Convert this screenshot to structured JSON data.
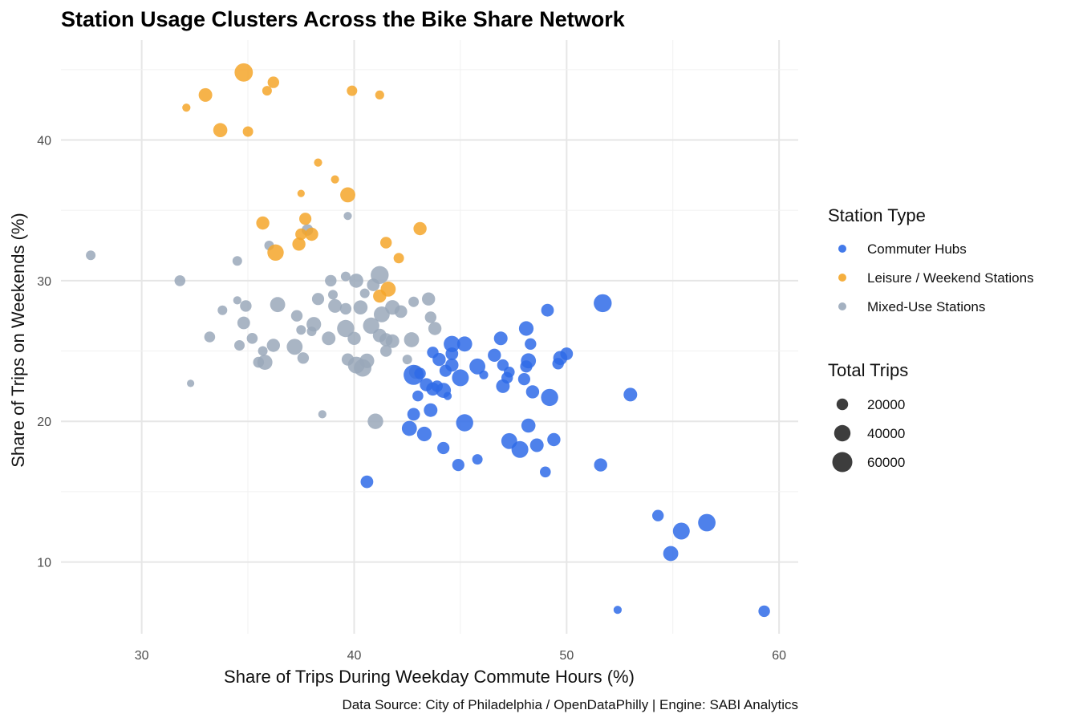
{
  "chart_data": {
    "type": "scatter",
    "title": "Station Usage Clusters Across the Bike Share Network",
    "xlabel": "Share of Trips During Weekday Commute Hours (%)",
    "ylabel": "Share of Trips on Weekends (%)",
    "caption": "Data Source: City of Philadelphia / OpenDataPhilly | Engine: SABI Analytics",
    "xlim": [
      26.2,
      60.9
    ],
    "ylim": [
      4.9,
      47.1
    ],
    "x_ticks": [
      30,
      40,
      50,
      60
    ],
    "y_ticks": [
      10,
      20,
      30,
      40
    ],
    "grid": true,
    "legend_placement": "right",
    "color_legend_title": "Station Type",
    "size_legend_title": "Total Trips",
    "size_legend": [
      20000,
      40000,
      60000
    ],
    "series": [
      {
        "name": "Commuter Hubs",
        "color": "#2f6be8",
        "points": [
          [
            51.7,
            28.4,
            48000
          ],
          [
            49.1,
            27.9,
            24000
          ],
          [
            48.1,
            26.6,
            32000
          ],
          [
            46.9,
            25.9,
            28000
          ],
          [
            45.2,
            25.5,
            34000
          ],
          [
            44.6,
            25.5,
            40000
          ],
          [
            48.3,
            25.5,
            20000
          ],
          [
            50.0,
            24.8,
            24000
          ],
          [
            49.7,
            24.5,
            30000
          ],
          [
            43.7,
            24.9,
            20000
          ],
          [
            44.0,
            24.4,
            26000
          ],
          [
            44.6,
            24.8,
            24000
          ],
          [
            46.6,
            24.7,
            26000
          ],
          [
            48.2,
            24.3,
            34000
          ],
          [
            49.6,
            24.1,
            20000
          ],
          [
            45.8,
            23.9,
            38000
          ],
          [
            47.0,
            24.0,
            20000
          ],
          [
            48.1,
            23.9,
            22000
          ],
          [
            43.1,
            23.4,
            20000
          ],
          [
            42.8,
            23.3,
            60000
          ],
          [
            44.3,
            23.6,
            22000
          ],
          [
            44.6,
            24.0,
            26000
          ],
          [
            45.0,
            23.1,
            42000
          ],
          [
            47.3,
            23.5,
            18000
          ],
          [
            47.2,
            23.1,
            20000
          ],
          [
            46.1,
            23.3,
            12000
          ],
          [
            48.0,
            23.0,
            22000
          ],
          [
            43.4,
            22.6,
            26000
          ],
          [
            43.9,
            22.5,
            20000
          ],
          [
            44.2,
            22.2,
            34000
          ],
          [
            43.7,
            22.3,
            26000
          ],
          [
            47.0,
            22.5,
            28000
          ],
          [
            48.4,
            22.1,
            26000
          ],
          [
            49.2,
            21.7,
            44000
          ],
          [
            53.0,
            21.9,
            28000
          ],
          [
            43.0,
            21.8,
            18000
          ],
          [
            44.4,
            21.8,
            10000
          ],
          [
            42.8,
            20.5,
            24000
          ],
          [
            43.6,
            20.8,
            28000
          ],
          [
            45.2,
            19.9,
            44000
          ],
          [
            48.2,
            19.7,
            30000
          ],
          [
            42.6,
            19.5,
            34000
          ],
          [
            43.3,
            19.1,
            32000
          ],
          [
            47.3,
            18.6,
            38000
          ],
          [
            47.8,
            18.0,
            42000
          ],
          [
            48.6,
            18.3,
            28000
          ],
          [
            49.4,
            18.7,
            26000
          ],
          [
            44.2,
            18.1,
            22000
          ],
          [
            45.8,
            17.3,
            16000
          ],
          [
            44.9,
            16.9,
            22000
          ],
          [
            51.6,
            16.9,
            26000
          ],
          [
            49.0,
            16.4,
            18000
          ],
          [
            40.6,
            15.7,
            24000
          ],
          [
            54.3,
            13.3,
            20000
          ],
          [
            55.4,
            12.2,
            42000
          ],
          [
            56.6,
            12.8,
            46000
          ],
          [
            54.9,
            10.6,
            34000
          ],
          [
            52.4,
            6.6,
            10000
          ],
          [
            59.3,
            6.5,
            20000
          ]
        ]
      },
      {
        "name": "Leisure / Weekend Stations",
        "color": "#f4a62a",
        "points": [
          [
            34.8,
            44.8,
            50000
          ],
          [
            33.0,
            43.2,
            28000
          ],
          [
            36.2,
            44.1,
            20000
          ],
          [
            35.9,
            43.5,
            14000
          ],
          [
            39.9,
            43.5,
            16000
          ],
          [
            41.2,
            43.2,
            12000
          ],
          [
            32.1,
            42.3,
            10000
          ],
          [
            33.7,
            40.7,
            30000
          ],
          [
            35.0,
            40.6,
            16000
          ],
          [
            38.3,
            38.4,
            10000
          ],
          [
            39.1,
            37.2,
            10000
          ],
          [
            37.5,
            36.2,
            8000
          ],
          [
            39.7,
            36.1,
            34000
          ],
          [
            35.7,
            34.1,
            26000
          ],
          [
            37.7,
            34.4,
            22000
          ],
          [
            37.5,
            33.3,
            20000
          ],
          [
            38.0,
            33.3,
            26000
          ],
          [
            43.1,
            33.7,
            26000
          ],
          [
            37.4,
            32.6,
            26000
          ],
          [
            36.3,
            32.0,
            40000
          ],
          [
            41.5,
            32.7,
            20000
          ],
          [
            42.1,
            31.6,
            16000
          ],
          [
            41.6,
            29.4,
            34000
          ],
          [
            41.2,
            28.9,
            26000
          ]
        ]
      },
      {
        "name": "Mixed-Use Stations",
        "color": "#9aa8ba",
        "points": [
          [
            27.6,
            31.8,
            14000
          ],
          [
            31.8,
            30.0,
            18000
          ],
          [
            33.8,
            27.9,
            14000
          ],
          [
            34.5,
            28.6,
            10000
          ],
          [
            34.9,
            28.2,
            20000
          ],
          [
            34.5,
            31.4,
            14000
          ],
          [
            36.0,
            32.5,
            14000
          ],
          [
            37.8,
            33.6,
            20000
          ],
          [
            39.7,
            34.6,
            10000
          ],
          [
            39.6,
            30.3,
            14000
          ],
          [
            40.1,
            30.0,
            30000
          ],
          [
            40.9,
            29.7,
            24000
          ],
          [
            41.2,
            30.4,
            48000
          ],
          [
            40.5,
            29.1,
            14000
          ],
          [
            38.9,
            30.0,
            20000
          ],
          [
            36.4,
            28.3,
            34000
          ],
          [
            37.3,
            27.5,
            20000
          ],
          [
            38.3,
            28.7,
            22000
          ],
          [
            39.1,
            28.2,
            28000
          ],
          [
            39.6,
            28.0,
            20000
          ],
          [
            40.3,
            28.1,
            30000
          ],
          [
            41.3,
            27.6,
            38000
          ],
          [
            41.8,
            28.1,
            32000
          ],
          [
            42.2,
            27.8,
            24000
          ],
          [
            42.8,
            28.5,
            16000
          ],
          [
            43.5,
            28.7,
            26000
          ],
          [
            43.6,
            27.4,
            20000
          ],
          [
            43.8,
            26.6,
            26000
          ],
          [
            34.8,
            27.0,
            24000
          ],
          [
            35.2,
            25.9,
            18000
          ],
          [
            33.2,
            26.0,
            18000
          ],
          [
            34.6,
            25.4,
            16000
          ],
          [
            37.5,
            26.5,
            14000
          ],
          [
            38.0,
            26.4,
            14000
          ],
          [
            38.1,
            26.9,
            32000
          ],
          [
            38.8,
            25.9,
            28000
          ],
          [
            39.6,
            26.6,
            44000
          ],
          [
            40.0,
            25.9,
            26000
          ],
          [
            40.8,
            26.8,
            40000
          ],
          [
            41.2,
            26.1,
            28000
          ],
          [
            41.5,
            25.8,
            26000
          ],
          [
            41.8,
            25.7,
            28000
          ],
          [
            42.7,
            25.8,
            34000
          ],
          [
            36.2,
            25.4,
            26000
          ],
          [
            37.2,
            25.3,
            38000
          ],
          [
            35.7,
            25.0,
            14000
          ],
          [
            35.5,
            24.2,
            18000
          ],
          [
            35.8,
            24.2,
            34000
          ],
          [
            37.6,
            24.5,
            20000
          ],
          [
            39.7,
            24.4,
            22000
          ],
          [
            40.1,
            24.0,
            42000
          ],
          [
            40.4,
            23.8,
            46000
          ],
          [
            40.6,
            24.3,
            32000
          ],
          [
            41.5,
            25.0,
            20000
          ],
          [
            42.5,
            24.4,
            14000
          ],
          [
            42.9,
            23.5,
            28000
          ],
          [
            32.3,
            22.7,
            8000
          ],
          [
            38.5,
            20.5,
            10000
          ],
          [
            41.0,
            20.0,
            36000
          ],
          [
            39.0,
            29.0,
            14000
          ]
        ]
      }
    ]
  }
}
